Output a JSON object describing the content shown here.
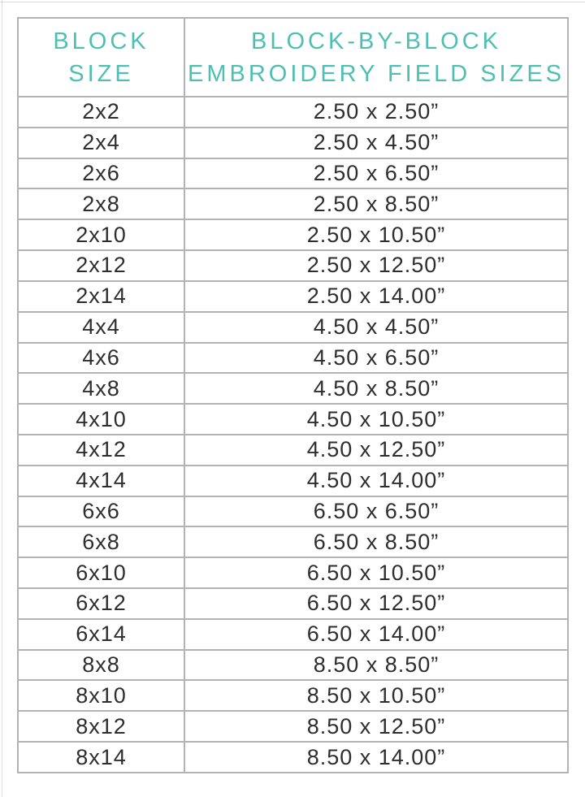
{
  "colors": {
    "accent_teal": "#4fbfb3",
    "body_text": "#2e2e2e",
    "grid_line": "#b3b3b3",
    "outer_border": "#9a9a9a"
  },
  "header": {
    "col1_line1": "BLOCK",
    "col1_line2": "SIZE",
    "col2_line1": "BLOCK-BY-BLOCK",
    "col2_line2": "EMBROIDERY FIELD SIZES"
  },
  "chart_data": {
    "type": "table",
    "title": "Block-by-Block Embroidery Field Sizes",
    "columns": [
      "BLOCK SIZE",
      "BLOCK-BY-BLOCK EMBROIDERY FIELD SIZES"
    ],
    "rows": [
      [
        "2x2",
        "2.50 x 2.50”"
      ],
      [
        "2x4",
        "2.50 x 4.50”"
      ],
      [
        "2x6",
        "2.50 x 6.50”"
      ],
      [
        "2x8",
        "2.50 x 8.50”"
      ],
      [
        "2x10",
        "2.50 x 10.50”"
      ],
      [
        "2x12",
        "2.50 x 12.50”"
      ],
      [
        "2x14",
        "2.50 x 14.00”"
      ],
      [
        "4x4",
        "4.50 x 4.50”"
      ],
      [
        "4x6",
        "4.50 x 6.50”"
      ],
      [
        "4x8",
        "4.50 x 8.50”"
      ],
      [
        "4x10",
        "4.50 x 10.50”"
      ],
      [
        "4x12",
        "4.50 x 12.50”"
      ],
      [
        "4x14",
        "4.50 x 14.00”"
      ],
      [
        "6x6",
        "6.50 x 6.50”"
      ],
      [
        "6x8",
        "6.50 x 8.50”"
      ],
      [
        "6x10",
        "6.50 x 10.50”"
      ],
      [
        "6x12",
        "6.50 x 12.50”"
      ],
      [
        "6x14",
        "6.50 x 14.00”"
      ],
      [
        "8x8",
        "8.50 x 8.50”"
      ],
      [
        "8x10",
        "8.50 x 10.50”"
      ],
      [
        "8x12",
        "8.50 x 12.50”"
      ],
      [
        "8x14",
        "8.50 x 14.00”"
      ]
    ]
  }
}
